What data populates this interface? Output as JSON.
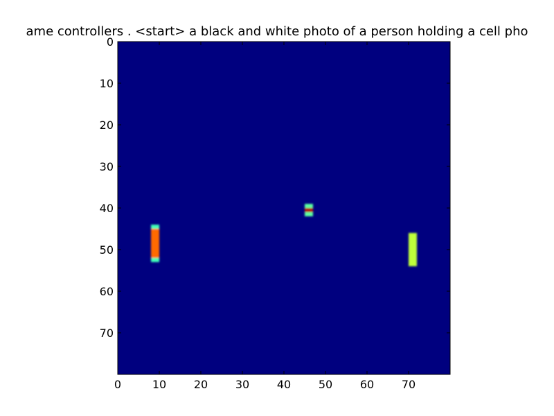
{
  "chart_data": {
    "type": "heatmap",
    "title": "ame controllers . <start> a black and white photo of a person holding a cell pho",
    "xlabel": "",
    "ylabel": "",
    "grid_size": [
      80,
      80
    ],
    "xlim": [
      0,
      80
    ],
    "ylim": [
      80,
      0
    ],
    "x_ticks": [
      "0",
      "10",
      "20",
      "30",
      "40",
      "50",
      "60",
      "70"
    ],
    "y_ticks": [
      "0",
      "10",
      "20",
      "30",
      "40",
      "50",
      "60",
      "70"
    ],
    "x_tick_values": [
      0,
      10,
      20,
      30,
      40,
      50,
      60,
      70
    ],
    "y_tick_values": [
      0,
      10,
      20,
      30,
      40,
      50,
      60,
      70
    ],
    "grid": false,
    "colormap": "jet",
    "background_color": "#00007f",
    "blobs": [
      {
        "x": [
          8,
          10
        ],
        "y": [
          44,
          45
        ],
        "color": "#3fffb7"
      },
      {
        "x": [
          8,
          10
        ],
        "y": [
          45,
          52
        ],
        "color": "#ff6a00"
      },
      {
        "x": [
          8,
          10
        ],
        "y": [
          52,
          53
        ],
        "color": "#3fffb7"
      },
      {
        "x": [
          45,
          47
        ],
        "y": [
          39,
          40
        ],
        "color": "#5bffa0"
      },
      {
        "x": [
          45,
          47
        ],
        "y": [
          40,
          41
        ],
        "color": "#b40000"
      },
      {
        "x": [
          45,
          47
        ],
        "y": [
          41,
          42
        ],
        "color": "#5bffa0"
      },
      {
        "x": [
          70,
          72
        ],
        "y": [
          46,
          54
        ],
        "color": "#bfff3a"
      }
    ]
  }
}
